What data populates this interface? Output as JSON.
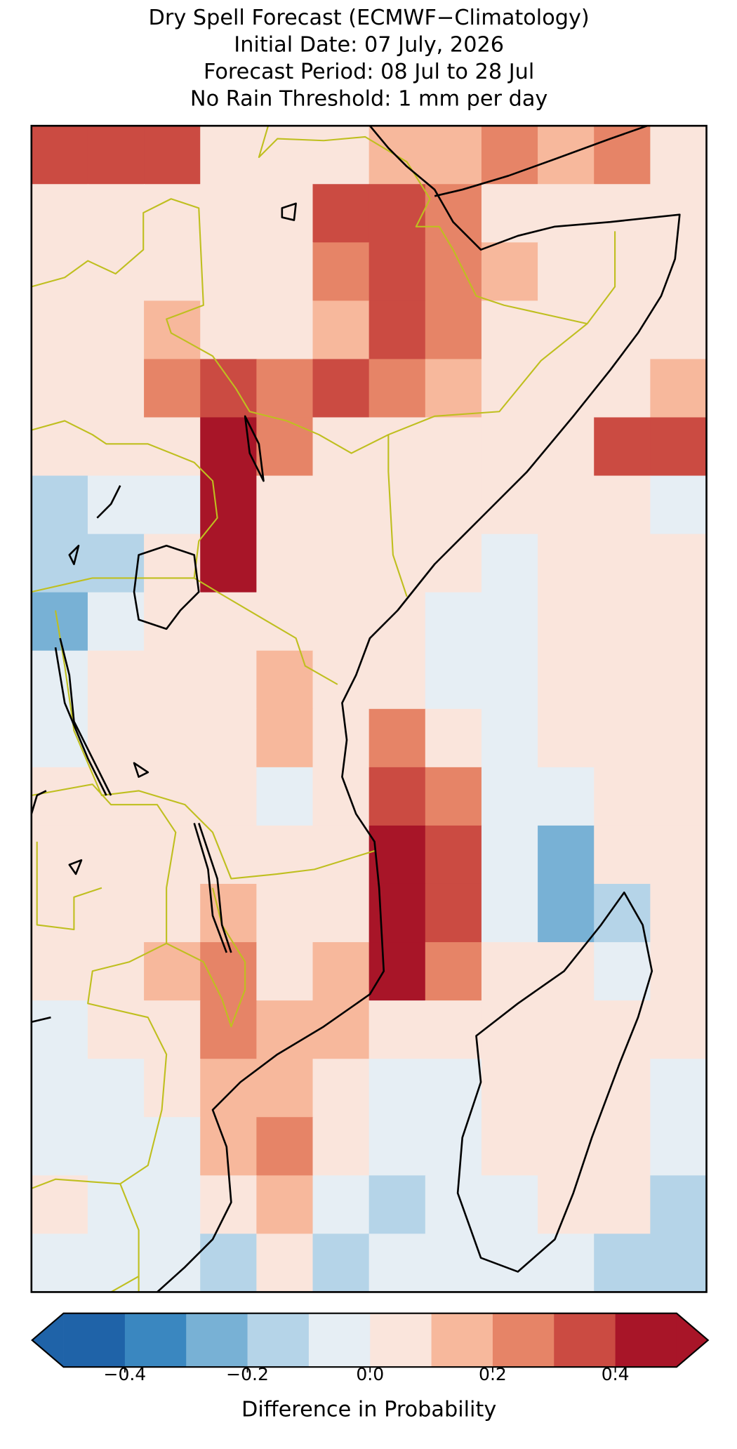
{
  "title_lines": [
    "Dry Spell Forecast (ECMWF−Climatology)",
    "Initial Date: 07 July, 2026",
    "Forecast Period: 08 Jul to 28 Jul",
    "No Rain Threshold: 1 mm per day"
  ],
  "map": {
    "grid": [
      [
        0.3,
        0.35,
        0.3,
        0.05,
        0.05,
        0.05,
        0.1,
        0.15,
        0.25,
        0.15,
        0.2,
        0.05
      ],
      [
        0.05,
        0.05,
        0.05,
        0.05,
        0.05,
        0.35,
        0.3,
        0.2,
        0.05,
        0.05,
        0.05,
        0.05
      ],
      [
        0.05,
        0.05,
        0.05,
        0.05,
        0.05,
        0.2,
        0.3,
        0.25,
        0.15,
        0.05,
        0.05,
        0.05
      ],
      [
        0.05,
        0.05,
        0.15,
        0.05,
        0.05,
        0.1,
        0.35,
        0.2,
        0.05,
        0.05,
        0.05,
        0.05
      ],
      [
        0.05,
        0.05,
        0.25,
        0.35,
        0.25,
        0.35,
        0.2,
        0.1,
        0.05,
        0.05,
        0.05,
        0.15
      ],
      [
        0.05,
        0.05,
        0.05,
        0.45,
        0.25,
        0.05,
        0.05,
        0.05,
        0.05,
        0.05,
        0.3,
        0.35
      ],
      [
        -0.15,
        -0.1,
        -0.05,
        0.45,
        0.05,
        0.05,
        0.05,
        0.05,
        0.05,
        0.05,
        0.05,
        -0.05
      ],
      [
        -0.2,
        -0.15,
        0.05,
        0.4,
        0.05,
        0.05,
        0.05,
        0.05,
        -0.05,
        0.05,
        0.05,
        0.05
      ],
      [
        -0.25,
        -0.05,
        0.05,
        0.05,
        0.05,
        0.05,
        0.05,
        -0.05,
        -0.05,
        0.05,
        0.05,
        0.05
      ],
      [
        -0.1,
        0.05,
        0.05,
        0.05,
        0.15,
        0.05,
        0.05,
        -0.05,
        -0.05,
        0.05,
        0.05,
        0.05
      ],
      [
        -0.05,
        0.05,
        0.05,
        0.05,
        0.15,
        0.05,
        0.2,
        0.05,
        -0.05,
        0.05,
        0.05,
        0.05
      ],
      [
        0.05,
        0.05,
        0.05,
        0.05,
        -0.05,
        0.05,
        0.3,
        0.2,
        -0.05,
        -0.05,
        0.05,
        0.05
      ],
      [
        0.05,
        0.05,
        0.05,
        0.05,
        0.05,
        0.05,
        0.45,
        0.3,
        -0.05,
        -0.25,
        0.05,
        0.05
      ],
      [
        0.05,
        0.05,
        0.05,
        0.15,
        0.05,
        0.05,
        0.45,
        0.35,
        -0.05,
        -0.25,
        -0.15,
        0.05
      ],
      [
        0.05,
        0.05,
        0.15,
        0.2,
        0.05,
        0.15,
        0.4,
        0.2,
        0.05,
        0.05,
        -0.05,
        0.05
      ],
      [
        -0.05,
        0.05,
        0.05,
        0.2,
        0.1,
        0.15,
        0.05,
        0.05,
        0.05,
        0.05,
        0.05,
        0.05
      ],
      [
        -0.05,
        -0.05,
        0.05,
        0.15,
        0.15,
        0.05,
        -0.05,
        -0.05,
        0.05,
        0.05,
        0.05,
        -0.05
      ],
      [
        -0.05,
        -0.05,
        -0.05,
        0.15,
        0.2,
        0.05,
        -0.05,
        -0.05,
        0.05,
        0.05,
        0.05,
        -0.1
      ],
      [
        0.05,
        -0.05,
        -0.05,
        0.05,
        0.15,
        -0.05,
        -0.15,
        -0.1,
        -0.05,
        0.05,
        0.05,
        -0.15
      ],
      [
        -0.05,
        -0.05,
        -0.05,
        -0.15,
        0.05,
        -0.15,
        -0.1,
        -0.05,
        -0.05,
        -0.05,
        -0.15,
        -0.2
      ]
    ]
  },
  "colorbar": {
    "lim": [
      -0.5,
      0.5
    ],
    "bounds": [
      -0.5,
      -0.4,
      -0.3,
      -0.2,
      -0.1,
      0,
      0.1,
      0.2,
      0.3,
      0.4,
      0.5
    ],
    "colors": [
      "#1f63a8",
      "#3a87c0",
      "#78b1d5",
      "#b5d4e8",
      "#e6eef4",
      "#fae5dc",
      "#f7b89c",
      "#e68467",
      "#cb4b42",
      "#a81528"
    ],
    "ticks": [
      {
        "value": -0.4,
        "label": "−0.4"
      },
      {
        "value": -0.2,
        "label": "−0.2"
      },
      {
        "value": 0,
        "label": "0.0"
      },
      0.2,
      0.4
    ],
    "label": "Difference in Probability"
  }
}
